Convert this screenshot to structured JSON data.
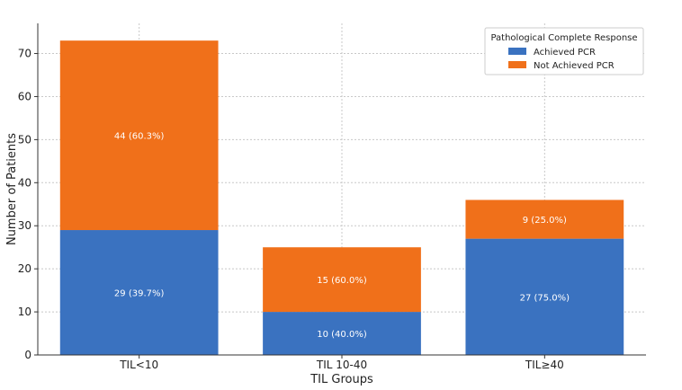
{
  "chart_data": {
    "type": "bar",
    "stacked": true,
    "categories": [
      "TIL<10",
      "TIL 10-40",
      "TIL≥40"
    ],
    "series": [
      {
        "name": "Achieved PCR",
        "color": "#3a72c0",
        "values": [
          29,
          10,
          27
        ],
        "labels": [
          "29 (39.7%)",
          "10 (40.0%)",
          "27 (75.0%)"
        ]
      },
      {
        "name": "Not Achieved PCR",
        "color": "#f0701a",
        "values": [
          44,
          15,
          9
        ],
        "labels": [
          "44 (60.3%)",
          "15 (60.0%)",
          "9 (25.0%)"
        ]
      }
    ],
    "xlabel": "TIL Groups",
    "ylabel": "Number of Patients",
    "ylim": [
      0,
      77
    ],
    "yticks": [
      0,
      10,
      20,
      30,
      40,
      50,
      60,
      70
    ],
    "grid": true,
    "legend": {
      "title": "Pathological Complete Response",
      "placement": "top-right"
    }
  }
}
